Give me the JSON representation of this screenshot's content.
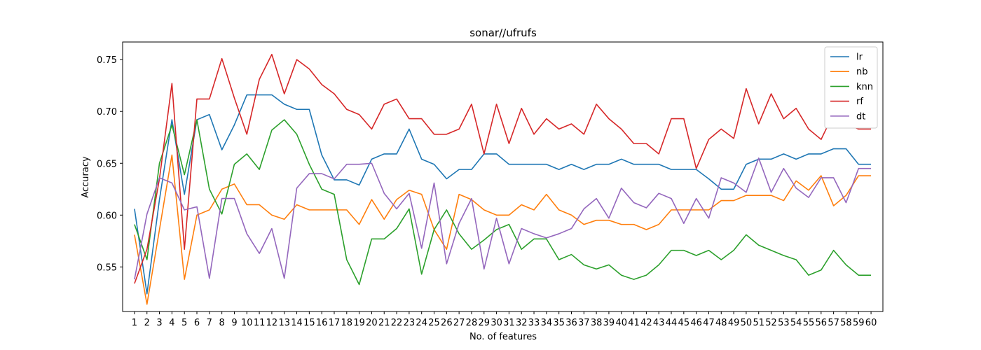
{
  "chart_data": {
    "type": "line",
    "title": "sonar//ufrufs",
    "xlabel": "No. of features",
    "ylabel": "Accuracy",
    "xlim": [
      0.05,
      60.95
    ],
    "ylim": [
      0.507,
      0.767
    ],
    "yticks": [
      0.55,
      0.6,
      0.65,
      0.7,
      0.75
    ],
    "grid": false,
    "legend_position": "top-right",
    "x": [
      1,
      2,
      3,
      4,
      5,
      6,
      7,
      8,
      9,
      10,
      11,
      12,
      13,
      14,
      15,
      16,
      17,
      18,
      19,
      20,
      21,
      22,
      23,
      24,
      25,
      26,
      27,
      28,
      29,
      30,
      31,
      32,
      33,
      34,
      35,
      36,
      37,
      38,
      39,
      40,
      41,
      42,
      43,
      44,
      45,
      46,
      47,
      48,
      49,
      50,
      51,
      52,
      53,
      54,
      55,
      56,
      57,
      58,
      59,
      60
    ],
    "series": [
      {
        "name": "lr",
        "color": "#1f77b4",
        "values": [
          0.606,
          0.524,
          0.615,
          0.692,
          0.62,
          0.692,
          0.697,
          0.663,
          0.687,
          0.716,
          0.716,
          0.716,
          0.707,
          0.702,
          0.702,
          0.658,
          0.634,
          0.634,
          0.629,
          0.654,
          0.659,
          0.659,
          0.683,
          0.654,
          0.649,
          0.635,
          0.644,
          0.644,
          0.659,
          0.659,
          0.649,
          0.649,
          0.649,
          0.649,
          0.644,
          0.649,
          0.644,
          0.649,
          0.649,
          0.654,
          0.649,
          0.649,
          0.649,
          0.644,
          0.644,
          0.644,
          0.635,
          0.625,
          0.625,
          0.649,
          0.654,
          0.654,
          0.659,
          0.654,
          0.659,
          0.659,
          0.664,
          0.664,
          0.649,
          0.649
        ]
      },
      {
        "name": "nb",
        "color": "#ff7f0e",
        "values": [
          0.581,
          0.514,
          0.586,
          0.658,
          0.538,
          0.6,
          0.605,
          0.625,
          0.63,
          0.61,
          0.61,
          0.6,
          0.596,
          0.61,
          0.605,
          0.605,
          0.605,
          0.605,
          0.591,
          0.615,
          0.596,
          0.615,
          0.624,
          0.62,
          0.586,
          0.567,
          0.62,
          0.615,
          0.605,
          0.6,
          0.6,
          0.61,
          0.605,
          0.62,
          0.605,
          0.6,
          0.591,
          0.595,
          0.595,
          0.591,
          0.591,
          0.586,
          0.591,
          0.605,
          0.605,
          0.605,
          0.605,
          0.614,
          0.614,
          0.619,
          0.619,
          0.619,
          0.614,
          0.633,
          0.624,
          0.638,
          0.609,
          0.619,
          0.638,
          0.638
        ]
      },
      {
        "name": "knn",
        "color": "#2ca02c",
        "values": [
          0.591,
          0.557,
          0.65,
          0.687,
          0.639,
          0.692,
          0.625,
          0.601,
          0.649,
          0.659,
          0.644,
          0.682,
          0.692,
          0.678,
          0.649,
          0.625,
          0.62,
          0.557,
          0.533,
          0.577,
          0.577,
          0.587,
          0.606,
          0.543,
          0.586,
          0.605,
          0.582,
          0.567,
          0.576,
          0.586,
          0.591,
          0.567,
          0.577,
          0.577,
          0.557,
          0.562,
          0.552,
          0.548,
          0.552,
          0.542,
          0.538,
          0.542,
          0.552,
          0.566,
          0.566,
          0.561,
          0.566,
          0.557,
          0.566,
          0.581,
          0.571,
          0.566,
          0.561,
          0.557,
          0.542,
          0.547,
          0.566,
          0.552,
          0.542,
          0.542
        ]
      },
      {
        "name": "rf",
        "color": "#d62728",
        "values": [
          0.534,
          0.567,
          0.635,
          0.727,
          0.567,
          0.712,
          0.712,
          0.751,
          0.713,
          0.678,
          0.731,
          0.755,
          0.717,
          0.75,
          0.741,
          0.726,
          0.717,
          0.702,
          0.697,
          0.683,
          0.707,
          0.712,
          0.693,
          0.693,
          0.678,
          0.678,
          0.683,
          0.707,
          0.659,
          0.707,
          0.669,
          0.703,
          0.678,
          0.693,
          0.683,
          0.688,
          0.678,
          0.707,
          0.693,
          0.683,
          0.669,
          0.669,
          0.659,
          0.693,
          0.693,
          0.645,
          0.673,
          0.683,
          0.674,
          0.722,
          0.688,
          0.717,
          0.693,
          0.703,
          0.683,
          0.673,
          0.698,
          0.688,
          0.683,
          0.683
        ]
      },
      {
        "name": "dt",
        "color": "#9467bd",
        "values": [
          0.538,
          0.601,
          0.636,
          0.631,
          0.605,
          0.608,
          0.539,
          0.616,
          0.616,
          0.582,
          0.563,
          0.587,
          0.539,
          0.626,
          0.64,
          0.64,
          0.635,
          0.649,
          0.649,
          0.65,
          0.621,
          0.606,
          0.621,
          0.568,
          0.631,
          0.553,
          0.592,
          0.616,
          0.548,
          0.597,
          0.553,
          0.587,
          0.582,
          0.578,
          0.582,
          0.587,
          0.606,
          0.616,
          0.597,
          0.626,
          0.612,
          0.607,
          0.621,
          0.616,
          0.592,
          0.616,
          0.597,
          0.636,
          0.631,
          0.622,
          0.655,
          0.622,
          0.645,
          0.626,
          0.617,
          0.636,
          0.636,
          0.612,
          0.645,
          0.645
        ]
      }
    ]
  }
}
